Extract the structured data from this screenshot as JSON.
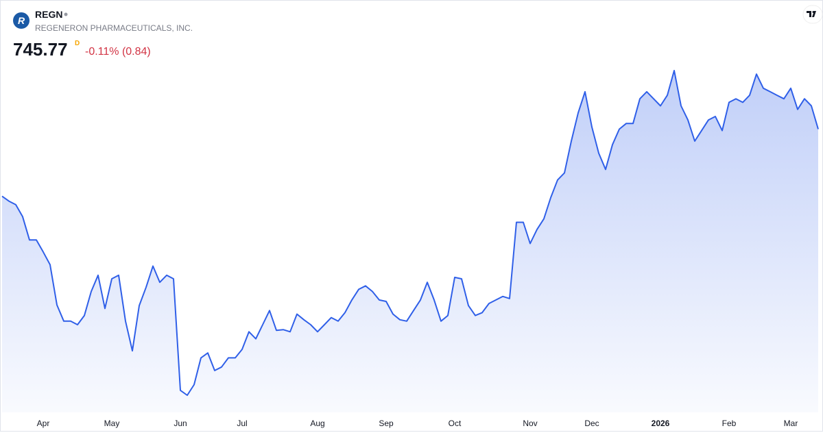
{
  "header": {
    "logo_letter": "R",
    "symbol": "REGN",
    "company": "REGENERON PHARMACEUTICALS, INC.",
    "price": 745.77,
    "interval": "D",
    "change": "-0.11% (0.84)"
  },
  "chart_data": {
    "type": "area",
    "color": "#2f5fe8",
    "categories": [
      null,
      null,
      null,
      null,
      null,
      null,
      "Apr",
      null,
      null,
      null,
      null,
      null,
      null,
      null,
      null,
      null,
      "May",
      null,
      null,
      null,
      null,
      null,
      null,
      null,
      null,
      null,
      "Jun",
      null,
      null,
      null,
      null,
      null,
      null,
      null,
      null,
      "Jul",
      null,
      null,
      null,
      null,
      null,
      null,
      null,
      null,
      null,
      null,
      "Aug",
      null,
      null,
      null,
      null,
      null,
      null,
      null,
      null,
      null,
      "Sep",
      null,
      null,
      null,
      null,
      null,
      null,
      null,
      null,
      null,
      "Oct",
      null,
      null,
      null,
      null,
      null,
      null,
      null,
      null,
      null,
      null,
      "Nov",
      null,
      null,
      null,
      null,
      null,
      null,
      null,
      null,
      "Dec",
      null,
      null,
      null,
      null,
      null,
      null,
      null,
      null,
      null,
      "2026",
      null,
      null,
      null,
      null,
      null,
      null,
      null,
      null,
      null,
      "Feb",
      null,
      null,
      null,
      null,
      null,
      null,
      null,
      null,
      "Mar",
      null,
      null,
      null,
      null
    ],
    "values": [
      678.15,
      673.17,
      669.61,
      657.51,
      634.02,
      634.02,
      621.92,
      609.1,
      568.53,
      552.16,
      552.16,
      548.6,
      557.85,
      582.06,
      598.43,
      564.97,
      594.87,
      598.43,
      552.16,
      522.26,
      567.82,
      586.33,
      607.68,
      591.31,
      598.43,
      594.87,
      482.4,
      477.42,
      488.1,
      515.15,
      520.13,
      502.33,
      505.89,
      515.15,
      515.15,
      523.69,
      541.48,
      534.37,
      548.6,
      562.84,
      542.91,
      543.62,
      541.48,
      559.28,
      553.58,
      548.6,
      541.48,
      548.6,
      555.72,
      552.16,
      560.7,
      573.51,
      584.19,
      587.75,
      582.06,
      573.51,
      572.09,
      559.28,
      553.58,
      552.16,
      562.84,
      573.51,
      591.31,
      573.51,
      552.16,
      557.85,
      596.29,
      594.87,
      567.82,
      557.85,
      560.7,
      569.96,
      573.51,
      577.07,
      574.94,
      651.81,
      651.81,
      630.46,
      644.69,
      655.37,
      676.73,
      694.52,
      701.64,
      733.67,
      762.14,
      783.5,
      747.91,
      721.57,
      705.2,
      730.11,
      745.77,
      751.46,
      751.46,
      776.38,
      783.5,
      776.38,
      769.26,
      779.94,
      804.85,
      769.26,
      755.02,
      733.67,
      744.35,
      755.02,
      758.58,
      744.35,
      772.82,
      776.38,
      772.82,
      779.94,
      801.29,
      787.05,
      783.5,
      779.94,
      776.38,
      787.05,
      765.7,
      776.38,
      769.26,
      745.77
    ]
  }
}
